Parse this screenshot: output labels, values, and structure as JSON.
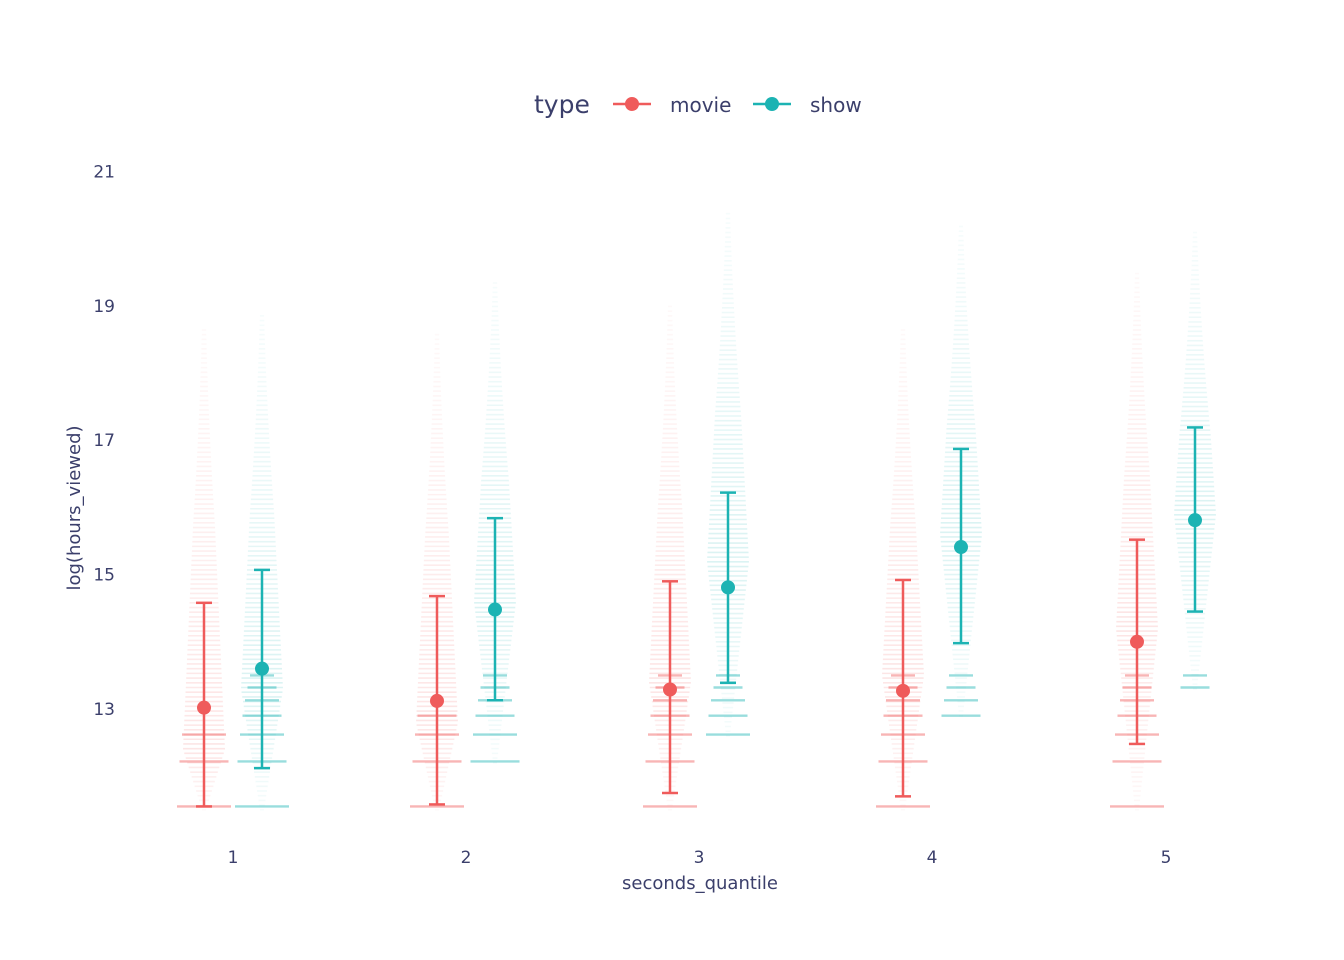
{
  "chart_data": {
    "type": "scatter",
    "title": "",
    "xlabel": "seconds_quantile",
    "ylabel": "log(hours_viewed)",
    "x_ticks": [
      "1",
      "2",
      "3",
      "4",
      "5"
    ],
    "y_ticks": [
      13,
      15,
      17,
      19,
      21
    ],
    "ylim": [
      11.6,
      21.2
    ],
    "grid": false,
    "legend": {
      "title": "type",
      "placement": "top-center",
      "orientation": "horizontal"
    },
    "series": [
      {
        "name": "movie",
        "color": "#EF5B5B",
        "mean": [
          13.02,
          13.12,
          13.29,
          13.27,
          14.0
        ],
        "lower": [
          11.55,
          11.58,
          11.75,
          11.7,
          12.48
        ],
        "upper": [
          14.58,
          14.68,
          14.9,
          14.92,
          15.52
        ],
        "cloud_min": [
          11.5,
          11.5,
          11.5,
          11.5,
          11.5
        ],
        "cloud_max": [
          18.7,
          18.6,
          19.0,
          18.7,
          19.5
        ],
        "cloud_peak": [
          12.4,
          12.8,
          13.4,
          13.5,
          14.2
        ]
      },
      {
        "name": "show",
        "color": "#1CB3B3",
        "mean": [
          13.6,
          14.48,
          14.81,
          15.41,
          15.81
        ],
        "lower": [
          12.12,
          13.13,
          13.39,
          13.98,
          14.45
        ],
        "upper": [
          15.07,
          15.84,
          16.22,
          16.87,
          17.19
        ],
        "cloud_min": [
          11.5,
          12.2,
          12.6,
          12.9,
          13.3
        ],
        "cloud_max": [
          18.9,
          19.4,
          20.4,
          20.2,
          20.1
        ],
        "cloud_peak": [
          13.3,
          14.6,
          15.2,
          15.6,
          15.9
        ]
      }
    ]
  }
}
